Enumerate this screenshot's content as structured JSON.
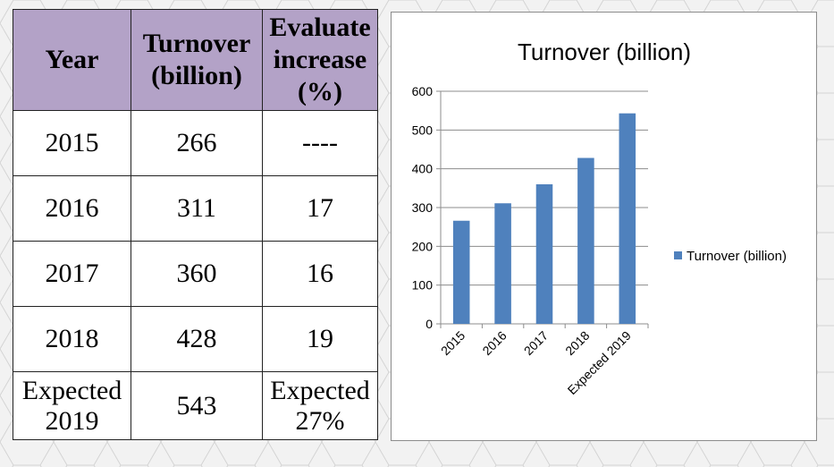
{
  "table": {
    "headers": [
      [
        "Year"
      ],
      [
        "Turnover",
        "(billion)"
      ],
      [
        "Evaluate",
        "increase",
        "(%)"
      ]
    ],
    "rows": [
      {
        "year": [
          "2015"
        ],
        "turnover": "266",
        "increase": [
          "----"
        ]
      },
      {
        "year": [
          "2016"
        ],
        "turnover": "311",
        "increase": [
          "17"
        ]
      },
      {
        "year": [
          "2017"
        ],
        "turnover": "360",
        "increase": [
          "16"
        ]
      },
      {
        "year": [
          "2018"
        ],
        "turnover": "428",
        "increase": [
          "19"
        ]
      },
      {
        "year": [
          "Expected",
          "2019"
        ],
        "turnover": "543",
        "increase": [
          "Expected",
          "27%"
        ]
      }
    ]
  },
  "chart_data": {
    "type": "bar",
    "title": "Turnover (billion)",
    "categories": [
      "2015",
      "2016",
      "2017",
      "2018",
      "Expected 2019"
    ],
    "series": [
      {
        "name": "Turnover (billion)",
        "values": [
          266,
          311,
          360,
          428,
          543
        ],
        "color": "#4f81bd"
      }
    ],
    "ylim": [
      0,
      600
    ],
    "yticks": [
      "0",
      "100",
      "200",
      "300",
      "400",
      "500",
      "600"
    ],
    "grid": true,
    "legend": "right"
  }
}
